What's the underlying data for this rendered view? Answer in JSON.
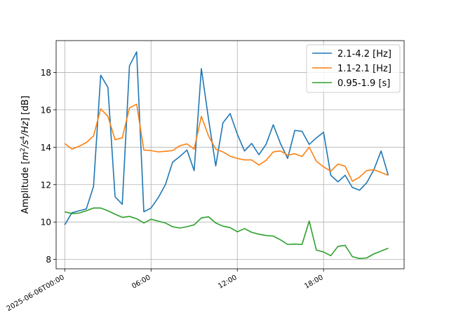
{
  "chart_data": {
    "type": "line",
    "ylabel": "Amplitude [$m^2/s^4/Hz$] [dB]",
    "ylabel_parts": {
      "prefix": "Amplitude [",
      "m": "m",
      "two": "2",
      "s": "/s",
      "four": "4",
      "hz": "/Hz",
      "suffix": "] [dB]"
    },
    "xlim": [
      -0.6,
      23.6
    ],
    "ylim": [
      7.5,
      19.7
    ],
    "grid": true,
    "legend_position": "top-right",
    "x_ticks": [
      {
        "value": 0,
        "label": "2025-06-06T00:00"
      },
      {
        "value": 6,
        "label": "06:00"
      },
      {
        "value": 12,
        "label": "12:00"
      },
      {
        "value": 18,
        "label": "18:00"
      }
    ],
    "y_ticks": [
      {
        "value": 8,
        "label": "8"
      },
      {
        "value": 10,
        "label": "10"
      },
      {
        "value": 12,
        "label": "12"
      },
      {
        "value": 14,
        "label": "14"
      },
      {
        "value": 16,
        "label": "16"
      },
      {
        "value": 18,
        "label": "18"
      }
    ],
    "x": [
      0,
      0.5,
      1,
      1.5,
      2,
      2.5,
      3,
      3.5,
      4,
      4.5,
      5,
      5.5,
      6,
      6.5,
      7,
      7.5,
      8,
      8.5,
      9,
      9.5,
      10,
      10.5,
      11,
      11.5,
      12,
      12.5,
      13,
      13.5,
      14,
      14.5,
      15,
      15.5,
      16,
      16.5,
      17,
      17.5,
      18,
      18.5,
      19,
      19.5,
      20,
      20.5,
      21,
      21.5,
      22,
      22.5,
      23
    ],
    "series": [
      {
        "name": "2.1-4.2 [Hz]",
        "color": "#1f77b4",
        "values": [
          9.85,
          10.5,
          10.6,
          10.7,
          11.9,
          17.85,
          17.2,
          11.35,
          10.95,
          18.35,
          19.1,
          10.55,
          10.75,
          11.3,
          12.0,
          13.2,
          13.5,
          13.85,
          12.75,
          18.2,
          15.5,
          13.0,
          15.3,
          15.8,
          14.7,
          13.8,
          14.2,
          13.6,
          14.15,
          15.2,
          14.2,
          13.4,
          14.9,
          14.85,
          14.15,
          14.5,
          14.8,
          12.5,
          12.15,
          12.5,
          11.85,
          11.7,
          12.1,
          12.8,
          13.8,
          12.5,
          null
        ]
      },
      {
        "name": "1.1-2.1 [Hz]",
        "color": "#ff7f0e",
        "values": [
          14.2,
          13.9,
          14.05,
          14.25,
          14.6,
          16.05,
          15.65,
          14.4,
          14.5,
          16.1,
          16.3,
          13.85,
          13.82,
          13.75,
          13.78,
          13.82,
          14.08,
          14.18,
          13.9,
          15.65,
          14.6,
          13.9,
          13.75,
          13.52,
          13.4,
          13.32,
          13.32,
          13.05,
          13.3,
          13.75,
          13.8,
          13.58,
          13.65,
          13.5,
          14.0,
          13.25,
          12.95,
          12.72,
          13.1,
          12.98,
          12.18,
          12.4,
          12.75,
          12.8,
          12.65,
          12.5,
          null
        ]
      },
      {
        "name": "0.95-1.9 [s]",
        "color": "#2ca02c",
        "values": [
          10.55,
          10.45,
          10.48,
          10.6,
          10.75,
          10.75,
          10.6,
          10.42,
          10.25,
          10.3,
          10.18,
          9.95,
          10.15,
          10.05,
          9.95,
          9.75,
          9.68,
          9.75,
          9.85,
          10.22,
          10.28,
          9.95,
          9.78,
          9.7,
          9.48,
          9.65,
          9.45,
          9.35,
          9.28,
          9.25,
          9.05,
          8.8,
          8.82,
          8.8,
          10.05,
          8.5,
          8.4,
          8.2,
          8.7,
          8.75,
          8.15,
          8.05,
          8.08,
          8.3,
          8.45,
          8.6,
          null
        ]
      }
    ]
  }
}
